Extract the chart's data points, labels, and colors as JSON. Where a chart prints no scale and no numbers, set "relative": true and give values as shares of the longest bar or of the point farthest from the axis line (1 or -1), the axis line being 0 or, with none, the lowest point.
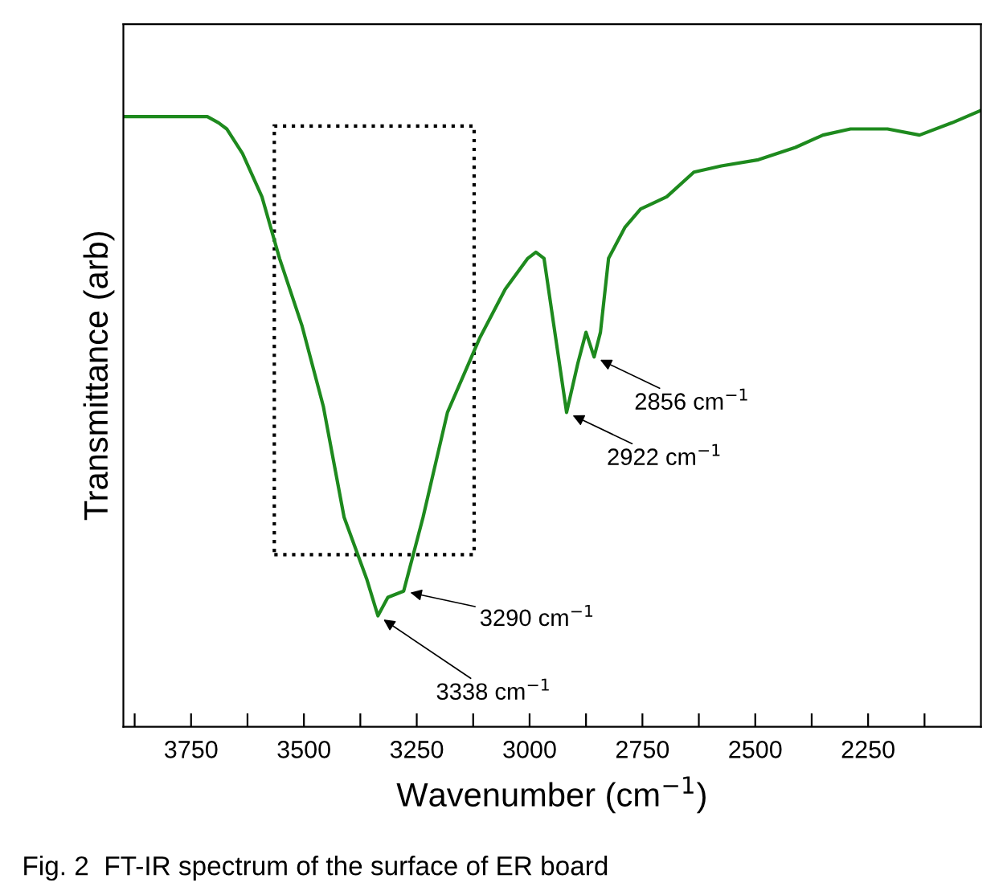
{
  "chart_data": {
    "type": "line",
    "relative": true,
    "xlabel": "Wavenumber (cm$^{−1}$)",
    "ylabel": "Transmittance (arb)",
    "xlim": [
      3900,
      2000
    ],
    "xticks": [
      {
        "value": 3875,
        "label": null
      },
      3750,
      {
        "value": 3625,
        "label": null
      },
      3500,
      {
        "value": 3375,
        "label": null
      },
      3250,
      {
        "value": 3125,
        "label": null
      },
      3000,
      {
        "value": 2875,
        "label": null
      },
      2750,
      {
        "value": 2625,
        "label": null
      },
      2500,
      {
        "value": 2375,
        "label": null
      },
      2250,
      {
        "value": 2125,
        "label": null
      }
    ],
    "grid": false,
    "legend": false,
    "series": [
      {
        "color": "#1e8a1e",
        "x": [
          3896,
          3875,
          3804,
          3714,
          3689,
          3671,
          3636,
          3593,
          3554,
          3504,
          3457,
          3411,
          3361,
          3336,
          3314,
          3279,
          3236,
          3182,
          3111,
          3054,
          3004,
          2986,
          2968,
          2946,
          2918,
          2893,
          2875,
          2857,
          2843,
          2825,
          2789,
          2754,
          2696,
          2636,
          2575,
          2493,
          2411,
          2350,
          2289,
          2207,
          2136,
          2064,
          2000
        ],
        "values": [
          0.99,
          0.99,
          0.99,
          0.99,
          0.98,
          0.97,
          0.93,
          0.86,
          0.76,
          0.65,
          0.52,
          0.34,
          0.24,
          0.18,
          0.21,
          0.22,
          0.34,
          0.51,
          0.63,
          0.71,
          0.76,
          0.77,
          0.76,
          0.65,
          0.51,
          0.59,
          0.64,
          0.6,
          0.64,
          0.76,
          0.81,
          0.84,
          0.86,
          0.9,
          0.91,
          0.92,
          0.94,
          0.96,
          0.97,
          0.97,
          0.96,
          0.98,
          1.0
        ]
      }
    ],
    "annotations": [
      {
        "text": "3338 cm$^{−1}$",
        "x": 3336,
        "y": 0.18
      },
      {
        "text": "3290 cm$^{−1}$",
        "x": 3279,
        "y": 0.22
      },
      {
        "text": "2922 cm$^{−1}$",
        "x": 2918,
        "y": 0.51
      },
      {
        "text": "2856 cm$^{−1}$",
        "x": 2857,
        "y": 0.6
      },
      "Fig. 2  FT-IR spectrum of the surface of ER board"
    ]
  }
}
